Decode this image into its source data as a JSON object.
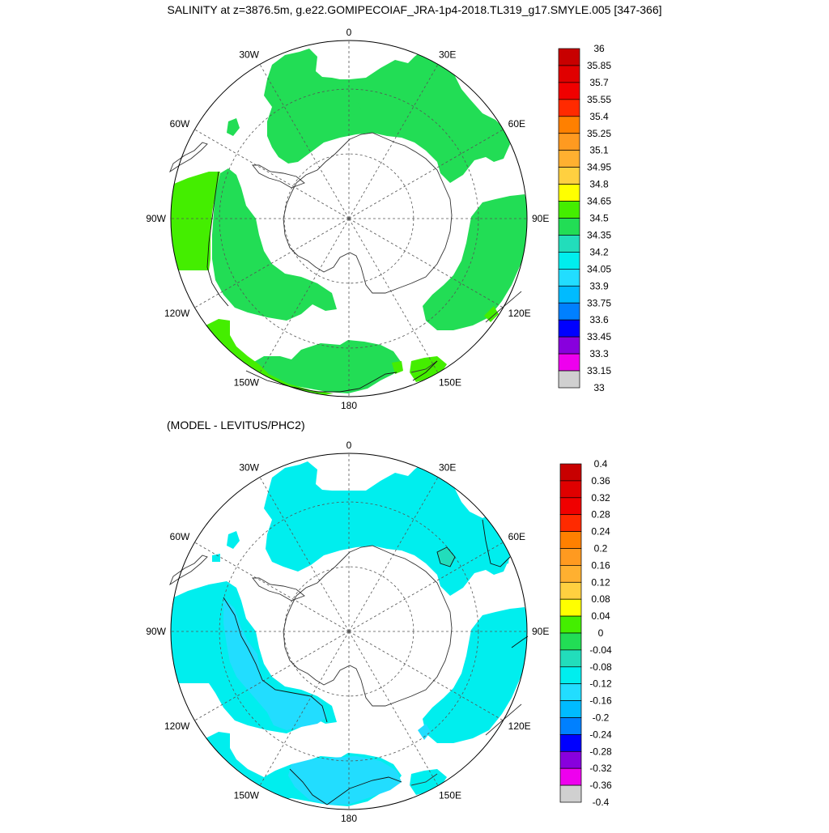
{
  "title": "SALINITY at z=3876.5m, g.e22.GOMIPECOIAF_JRA-1p4-2018.TL319_g17.SMYLE.005 [347-366]",
  "diff_title": "(MODEL - LEVITUS/PHC2)",
  "lon_labels": {
    "top": "0",
    "w30": "30W",
    "e30": "30E",
    "w60": "60W",
    "e60": "60E",
    "w90": "90W",
    "e90": "90E",
    "w120": "120W",
    "e120": "120E",
    "w150": "150W",
    "e150": "150E",
    "bottom": "180"
  },
  "colorbar_top": {
    "labels": [
      "36",
      "35.85",
      "35.7",
      "35.55",
      "35.4",
      "35.25",
      "35.1",
      "34.95",
      "34.8",
      "34.65",
      "34.5",
      "34.35",
      "34.2",
      "34.05",
      "33.9",
      "33.75",
      "33.6",
      "33.45",
      "33.3",
      "33.15",
      "33"
    ],
    "colors": [
      "#c80000",
      "#e00000",
      "#f00000",
      "#ff2a00",
      "#ff8000",
      "#ff9a20",
      "#ffb030",
      "#ffd040",
      "#ffff00",
      "#44ee00",
      "#22dd55",
      "#22ddbb",
      "#00eeee",
      "#22ddff",
      "#00bbff",
      "#0080ff",
      "#0000ff",
      "#8800dd",
      "#ee00ee",
      "#d0d0d0",
      "#707070"
    ]
  },
  "colorbar_bottom": {
    "labels": [
      "0.4",
      "0.36",
      "0.32",
      "0.28",
      "0.24",
      "0.2",
      "0.16",
      "0.12",
      "0.08",
      "0.04",
      "0",
      "-0.04",
      "-0.08",
      "-0.12",
      "-0.16",
      "-0.2",
      "-0.24",
      "-0.28",
      "-0.32",
      "-0.36",
      "-0.4"
    ],
    "colors": [
      "#c80000",
      "#e00000",
      "#f00000",
      "#ff2a00",
      "#ff8000",
      "#ff9a20",
      "#ffb030",
      "#ffd040",
      "#ffff00",
      "#44ee00",
      "#22dd55",
      "#22ddbb",
      "#00eeee",
      "#22ddff",
      "#00bbff",
      "#0080ff",
      "#0000ff",
      "#8800dd",
      "#ee00ee",
      "#d0d0d0",
      "#707070"
    ]
  },
  "fill_colors": {
    "salinity_main": "#22dd55",
    "salinity_high": "#44ee00",
    "diff_main": "#00eeee",
    "diff_low": "#22ddff",
    "diff_near_zero": "#22ddbb"
  }
}
